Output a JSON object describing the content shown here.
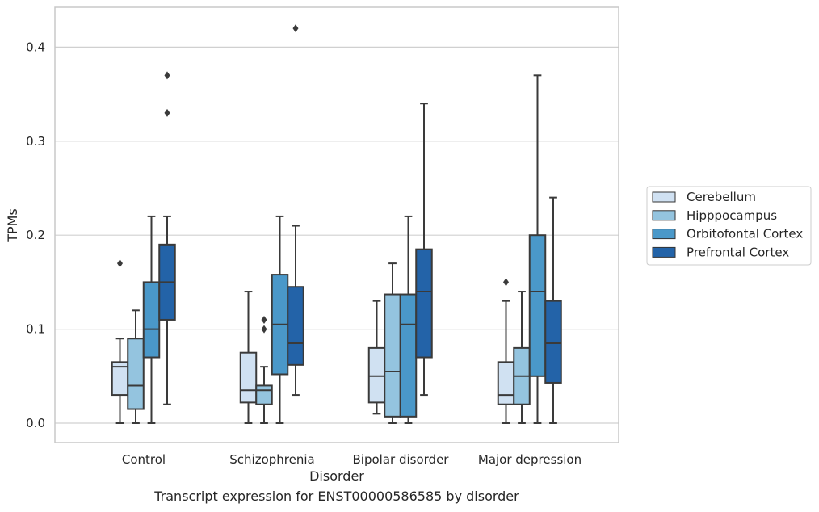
{
  "caption": "Transcript expression for ENST00000586585 by disorder",
  "colors": {
    "Cerebellum": "#d0e1f2",
    "Hipppocampus": "#94c4df",
    "Orbitofontal Cortex": "#4a98c9",
    "Prefrontal Cortex": "#2363a8",
    "line": "#3a3a3a",
    "grid": "#d0d0d0",
    "frame": "#c8c8c8"
  },
  "chart_data": {
    "type": "box",
    "title": "",
    "xlabel": "Disorder",
    "ylabel": "TPMs",
    "categories": [
      "Control",
      "Schizophrenia",
      "Bipolar disorder",
      "Major depression"
    ],
    "hue": [
      "Cerebellum",
      "Hipppocampus",
      "Orbitofontal Cortex",
      "Prefrontal Cortex"
    ],
    "yticks": [
      "0.0",
      "0.1",
      "0.2",
      "0.3",
      "0.4"
    ],
    "ylim": [
      -0.02,
      0.44
    ],
    "grid": true,
    "legend_position": "right, outside plot",
    "series": [
      {
        "name": "Cerebellum",
        "boxes": [
          {
            "category": "Control",
            "whislo": 0.0,
            "q1": 0.03,
            "median": 0.06,
            "q3": 0.065,
            "whishi": 0.09,
            "fliers": [
              0.17
            ]
          },
          {
            "category": "Schizophrenia",
            "whislo": 0.0,
            "q1": 0.022,
            "median": 0.035,
            "q3": 0.075,
            "whishi": 0.14,
            "fliers": []
          },
          {
            "category": "Bipolar disorder",
            "whislo": 0.01,
            "q1": 0.022,
            "median": 0.05,
            "q3": 0.08,
            "whishi": 0.13,
            "fliers": []
          },
          {
            "category": "Major depression",
            "whislo": 0.0,
            "q1": 0.02,
            "median": 0.03,
            "q3": 0.065,
            "whishi": 0.13,
            "fliers": [
              0.15
            ]
          }
        ]
      },
      {
        "name": "Hipppocampus",
        "boxes": [
          {
            "category": "Control",
            "whislo": 0.0,
            "q1": 0.015,
            "median": 0.04,
            "q3": 0.09,
            "whishi": 0.12,
            "fliers": []
          },
          {
            "category": "Schizophrenia",
            "whislo": 0.0,
            "q1": 0.02,
            "median": 0.035,
            "q3": 0.04,
            "whishi": 0.06,
            "fliers": [
              0.1,
              0.11
            ]
          },
          {
            "category": "Bipolar disorder",
            "whislo": 0.0,
            "q1": 0.007,
            "median": 0.055,
            "q3": 0.137,
            "whishi": 0.17,
            "fliers": []
          },
          {
            "category": "Major depression",
            "whislo": 0.0,
            "q1": 0.02,
            "median": 0.05,
            "q3": 0.08,
            "whishi": 0.14,
            "fliers": []
          }
        ]
      },
      {
        "name": "Orbitofontal Cortex",
        "boxes": [
          {
            "category": "Control",
            "whislo": 0.0,
            "q1": 0.07,
            "median": 0.1,
            "q3": 0.15,
            "whishi": 0.22,
            "fliers": []
          },
          {
            "category": "Schizophrenia",
            "whislo": 0.0,
            "q1": 0.052,
            "median": 0.105,
            "q3": 0.158,
            "whishi": 0.22,
            "fliers": []
          },
          {
            "category": "Bipolar disorder",
            "whislo": 0.0,
            "q1": 0.007,
            "median": 0.105,
            "q3": 0.137,
            "whishi": 0.22,
            "fliers": []
          },
          {
            "category": "Major depression",
            "whislo": 0.0,
            "q1": 0.05,
            "median": 0.14,
            "q3": 0.2,
            "whishi": 0.37,
            "fliers": []
          }
        ]
      },
      {
        "name": "Prefrontal Cortex",
        "boxes": [
          {
            "category": "Control",
            "whislo": 0.02,
            "q1": 0.11,
            "median": 0.15,
            "q3": 0.19,
            "whishi": 0.22,
            "fliers": [
              0.33,
              0.37
            ]
          },
          {
            "category": "Schizophrenia",
            "whislo": 0.03,
            "q1": 0.062,
            "median": 0.085,
            "q3": 0.145,
            "whishi": 0.21,
            "fliers": [
              0.42
            ]
          },
          {
            "category": "Bipolar disorder",
            "whislo": 0.03,
            "q1": 0.07,
            "median": 0.14,
            "q3": 0.185,
            "whishi": 0.34,
            "fliers": []
          },
          {
            "category": "Major depression",
            "whislo": 0.0,
            "q1": 0.043,
            "median": 0.085,
            "q3": 0.13,
            "whishi": 0.24,
            "fliers": []
          }
        ]
      }
    ]
  }
}
